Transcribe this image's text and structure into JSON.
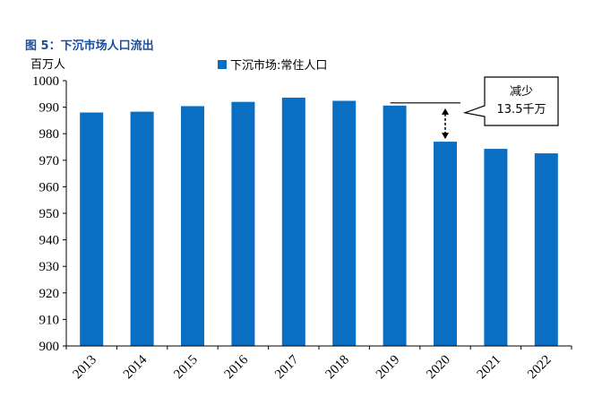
{
  "figure_title": "图 5：下沉市场人口流出",
  "chart_data": {
    "type": "bar",
    "unit_label": "百万人",
    "categories": [
      "2013",
      "2014",
      "2015",
      "2016",
      "2017",
      "2018",
      "2019",
      "2020",
      "2021",
      "2022"
    ],
    "series": [
      {
        "name": "下沉市场:常住人口",
        "color": "#0a6fc2",
        "values": [
          988,
          988.3,
          990.4,
          992,
          993.6,
          992.4,
          990.6,
          977,
          974.3,
          972.6
        ]
      }
    ],
    "ylim": [
      900,
      1000
    ],
    "y_ticks": [
      900,
      910,
      920,
      930,
      940,
      950,
      960,
      970,
      980,
      990,
      1000
    ],
    "grid": false,
    "legend_position": "top-center",
    "annotation": {
      "line1": "减少",
      "line2": "13.5千万",
      "from_category": "2019",
      "to_category": "2020"
    }
  }
}
